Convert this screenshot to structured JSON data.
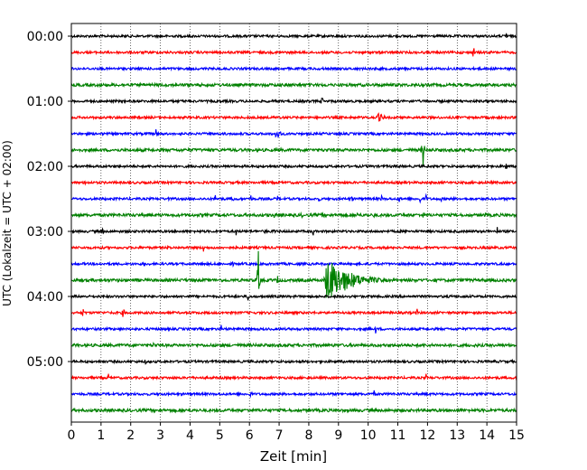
{
  "chart_data": {
    "type": "line",
    "title": "",
    "xlabel": "Zeit  [min]",
    "ylabel": "UTC (Lokalzeit = UTC + 02:00)",
    "xlim": [
      0,
      15
    ],
    "x_ticks": [
      "0",
      "1",
      "2",
      "3",
      "4",
      "5",
      "6",
      "7",
      "8",
      "9",
      "10",
      "11",
      "12",
      "13",
      "14",
      "15"
    ],
    "grid": "vertical dotted at each minute",
    "trace_interval_minutes": 15,
    "trace_color_cycle": [
      "#000000",
      "#ff0000",
      "#0000ff",
      "#008000"
    ],
    "y_tick_labels": [
      {
        "label": "00:00",
        "trace_index": 0
      },
      {
        "label": "01:00",
        "trace_index": 4
      },
      {
        "label": "02:00",
        "trace_index": 8
      },
      {
        "label": "03:00",
        "trace_index": 12
      },
      {
        "label": "04:00",
        "trace_index": 16
      },
      {
        "label": "05:00",
        "trace_index": 20
      }
    ],
    "traces": [
      {
        "start": "00:00",
        "color": "black",
        "events": [
          {
            "t": 14.65,
            "amp": 0.35
          }
        ]
      },
      {
        "start": "00:15",
        "color": "red",
        "events": [
          {
            "t": 13.55,
            "amp": 0.45
          }
        ]
      },
      {
        "start": "00:30",
        "color": "blue",
        "events": []
      },
      {
        "start": "00:45",
        "color": "green",
        "events": []
      },
      {
        "start": "01:00",
        "color": "black",
        "events": [
          {
            "t": 8.45,
            "amp": 0.35
          }
        ]
      },
      {
        "start": "01:15",
        "color": "red",
        "events": [
          {
            "t": 10.3,
            "amp": 0.3,
            "dur": 0.7
          }
        ]
      },
      {
        "start": "01:30",
        "color": "blue",
        "events": [
          {
            "t": 2.85,
            "amp": 0.3
          },
          {
            "t": 6.85,
            "amp": 0.35,
            "dur": 0.6
          }
        ]
      },
      {
        "start": "01:45",
        "color": "green",
        "events": [
          {
            "t": 11.85,
            "amp": 1.2
          }
        ]
      },
      {
        "start": "02:00",
        "color": "black",
        "events": [
          {
            "t": 14.05,
            "amp": 0.3
          },
          {
            "t": 14.65,
            "amp": 0.3
          },
          {
            "t": 4.2,
            "amp": 0.2
          }
        ]
      },
      {
        "start": "02:15",
        "color": "red",
        "events": [
          {
            "t": 0.45,
            "amp": 0.25
          }
        ]
      },
      {
        "start": "02:30",
        "color": "blue",
        "events": [
          {
            "t": 3.25,
            "amp": 0.25
          },
          {
            "t": 4.85,
            "amp": 0.25
          },
          {
            "t": 5.45,
            "amp": 0.25
          },
          {
            "t": 6.05,
            "amp": 0.25
          },
          {
            "t": 6.95,
            "amp": 0.25
          },
          {
            "t": 8.35,
            "amp": 0.25
          },
          {
            "t": 9.45,
            "amp": 0.25
          },
          {
            "t": 10.45,
            "amp": 0.25
          },
          {
            "t": 11.05,
            "amp": 0.25
          },
          {
            "t": 11.75,
            "amp": 0.3
          },
          {
            "t": 11.95,
            "amp": 0.3
          },
          {
            "t": 12.45,
            "amp": 0.25
          },
          {
            "t": 12.85,
            "amp": 0.25
          }
        ]
      },
      {
        "start": "02:45",
        "color": "green",
        "events": [
          {
            "t": 6.85,
            "amp": 0.3
          },
          {
            "t": 7.75,
            "amp": 0.25
          },
          {
            "t": 8.45,
            "amp": 0.25
          },
          {
            "t": 9.05,
            "amp": 0.25
          },
          {
            "t": 9.65,
            "amp": 0.25
          },
          {
            "t": 10.2,
            "amp": 0.25
          },
          {
            "t": 11.3,
            "amp": 0.25
          },
          {
            "t": 11.85,
            "amp": 0.25
          },
          {
            "t": 13.95,
            "amp": 0.25
          }
        ]
      },
      {
        "start": "03:00",
        "color": "black",
        "events": [
          {
            "t": 1.05,
            "amp": 0.3
          },
          {
            "t": 5.55,
            "amp": 0.3
          },
          {
            "t": 6.55,
            "amp": 0.3
          },
          {
            "t": 6.85,
            "amp": 0.25
          },
          {
            "t": 8.15,
            "amp": 0.3
          },
          {
            "t": 14.35,
            "amp": 0.3
          }
        ]
      },
      {
        "start": "03:15",
        "color": "red",
        "events": [
          {
            "t": 3.25,
            "amp": 0.2
          },
          {
            "t": 4.45,
            "amp": 0.3
          }
        ]
      },
      {
        "start": "03:30",
        "color": "blue",
        "events": [
          {
            "t": 2.45,
            "amp": 0.2
          },
          {
            "t": 5.45,
            "amp": 0.2
          }
        ]
      },
      {
        "start": "03:45",
        "color": "green",
        "events": [
          {
            "t": 6.3,
            "amp": 1.8
          },
          {
            "t": 6.95,
            "amp": 0.3
          },
          {
            "t": 8.5,
            "amp": 1.4,
            "dur": 2.4
          },
          {
            "t": 13.2,
            "amp": 0.3
          }
        ]
      },
      {
        "start": "04:00",
        "color": "black",
        "events": [
          {
            "t": 5.95,
            "amp": 0.3
          },
          {
            "t": 12.85,
            "amp": 0.3
          }
        ]
      },
      {
        "start": "04:15",
        "color": "red",
        "events": [
          {
            "t": 0.4,
            "amp": 0.35
          },
          {
            "t": 1.75,
            "amp": 0.45
          },
          {
            "t": 11.65,
            "amp": 0.25
          }
        ]
      },
      {
        "start": "04:30",
        "color": "blue",
        "events": [
          {
            "t": 5.05,
            "amp": 0.25
          },
          {
            "t": 10.25,
            "amp": 0.3
          }
        ]
      },
      {
        "start": "04:45",
        "color": "green",
        "events": [
          {
            "t": 2.75,
            "amp": 0.25,
            "dur": 0.2
          }
        ]
      },
      {
        "start": "05:00",
        "color": "black",
        "events": [
          {
            "t": 2.5,
            "amp": 0.2
          }
        ]
      },
      {
        "start": "05:15",
        "color": "red",
        "events": [
          {
            "t": 1.25,
            "amp": 0.25
          },
          {
            "t": 11.95,
            "amp": 0.25
          }
        ]
      },
      {
        "start": "05:30",
        "color": "blue",
        "events": [
          {
            "t": 6.05,
            "amp": 0.35
          },
          {
            "t": 10.2,
            "amp": 0.25
          },
          {
            "t": 10.75,
            "amp": 0.2
          }
        ]
      },
      {
        "start": "05:45",
        "color": "green",
        "events": []
      }
    ]
  }
}
